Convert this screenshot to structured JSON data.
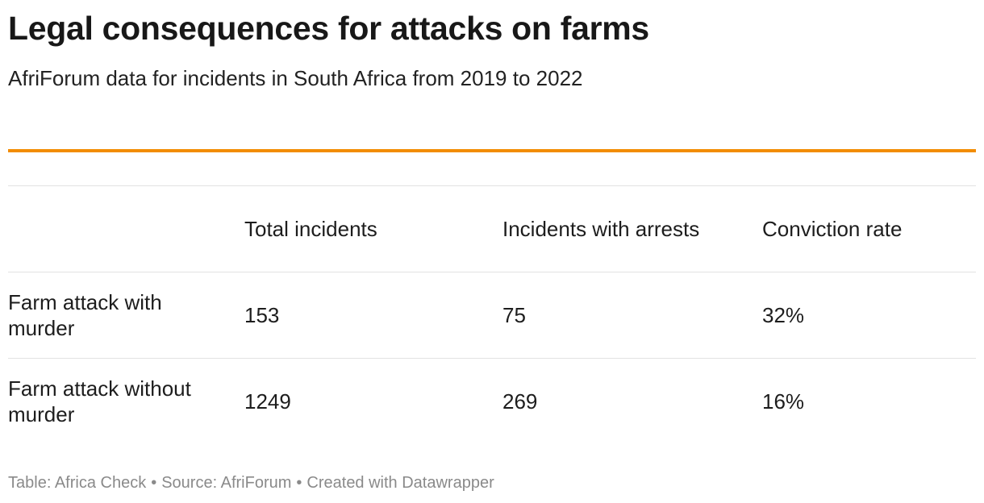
{
  "title": "Legal consequences for attacks on farms",
  "subtitle": "AfriForum data for incidents in South Africa from 2019 to 2022",
  "accent_color": "#f28c00",
  "chart_data": {
    "type": "table",
    "title": "Legal consequences for attacks on farms",
    "subtitle": "AfriForum data for incidents in South Africa from 2019 to 2022",
    "columns": [
      "",
      "Total incidents",
      "Incidents with arrests",
      "Conviction rate"
    ],
    "rows": [
      {
        "label": "Farm attack with murder",
        "total_incidents": "153",
        "incidents_with_arrests": "75",
        "conviction_rate": "32%"
      },
      {
        "label": "Farm attack without murder",
        "total_incidents": "1249",
        "incidents_with_arrests": "269",
        "conviction_rate": "16%"
      }
    ]
  },
  "footer": {
    "table_credit": "Table: Africa Check",
    "source": "Source: AfriForum",
    "created_with": "Created with Datawrapper",
    "separator": "•"
  }
}
